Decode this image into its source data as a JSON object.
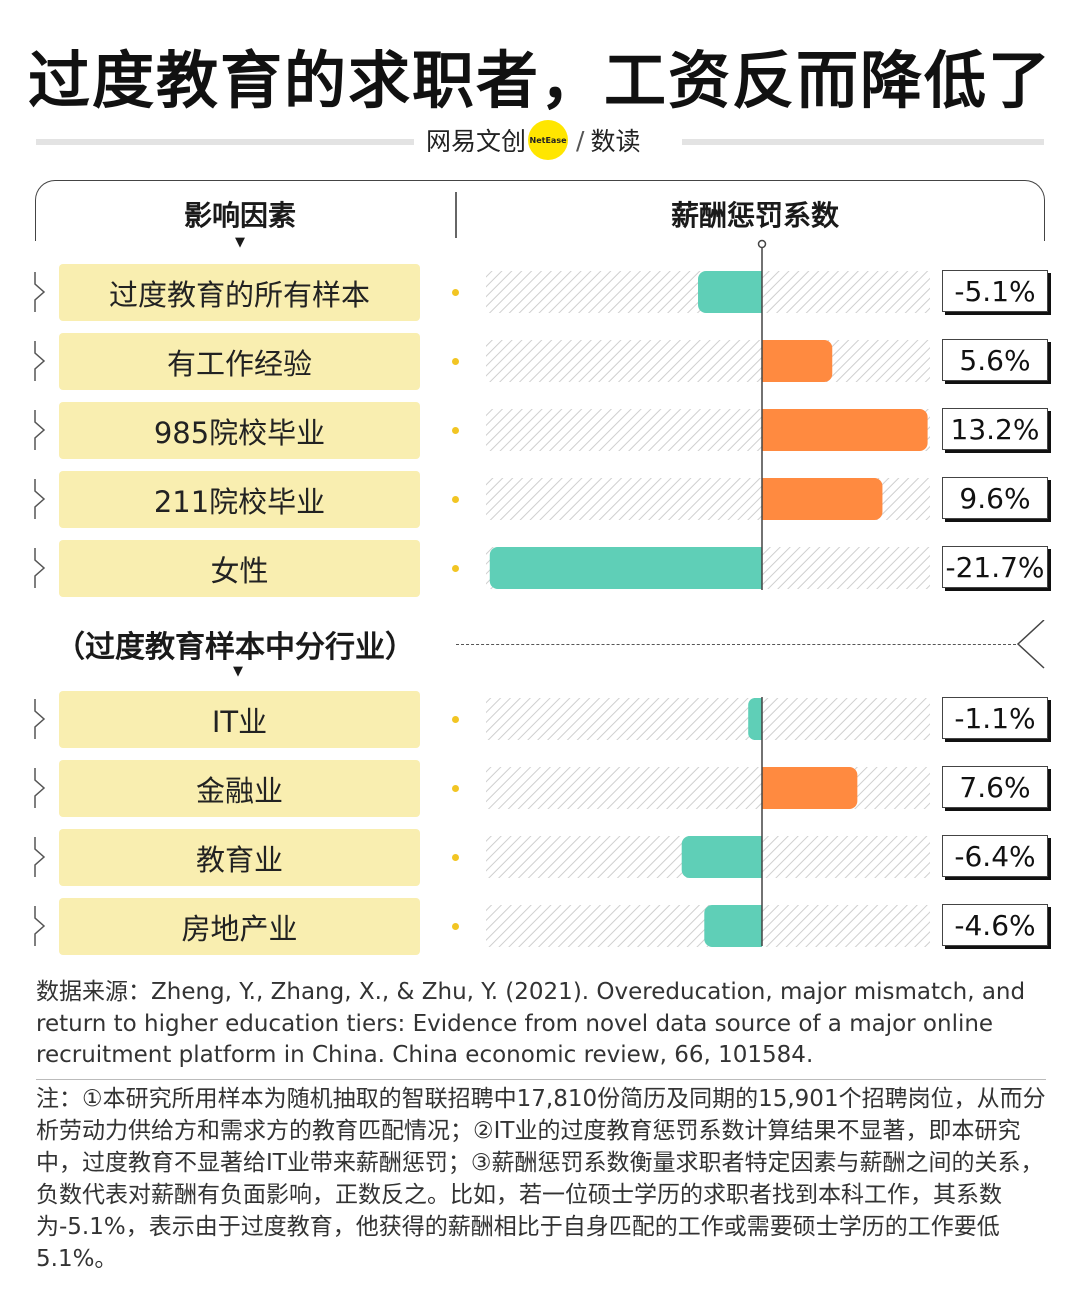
{
  "title": "过度教育的求职者，工资反而降低了",
  "brand": {
    "name": "网易文创",
    "logo_text": "NetEase",
    "slash": "/",
    "sub": "数读"
  },
  "headers": {
    "factor": "影响因素",
    "coefficient": "薪酬惩罚系数",
    "arrow": "▼"
  },
  "section2_title": "（过度教育样本中分行业）",
  "colors": {
    "negative": "#5fcfb7",
    "positive": "#ff8a40",
    "label_bg": "#f9eeb0",
    "dot": "#f2c523"
  },
  "chart_data": {
    "type": "bar",
    "orientation": "horizontal",
    "title": "薪酬惩罚系数",
    "unit": "%",
    "xlim": [
      -22,
      22
    ],
    "categories": [
      "过度教育的所有样本",
      "有工作经验",
      "985院校毕业",
      "211院校毕业",
      "女性",
      "IT业",
      "金融业",
      "教育业",
      "房地产业"
    ],
    "values": [
      -5.1,
      5.6,
      13.2,
      9.6,
      -21.7,
      -1.1,
      7.6,
      -6.4,
      -4.6
    ],
    "value_labels": [
      "-5.1%",
      "5.6%",
      "13.2%",
      "9.6%",
      "-21.7%",
      "-1.1%",
      "7.6%",
      "-6.4%",
      "-4.6%"
    ]
  },
  "footer": {
    "source": "数据来源：Zheng, Y., Zhang, X., & Zhu, Y. (2021). Overeducation, major mismatch, and return to higher education tiers: Evidence from novel data source of a major online recruitment platform in China. China economic review, 66, 101584.",
    "note": "注：①本研究所用样本为随机抽取的智联招聘中17,810份简历及同期的15,901个招聘岗位，从而分析劳动力供给方和需求方的教育匹配情况；②IT业的过度教育惩罚系数计算结果不显著，即本研究中，过度教育不显著给IT业带来薪酬惩罚；③薪酬惩罚系数衡量求职者特定因素与薪酬之间的关系，负数代表对薪酬有负面影响，正数反之。比如，若一位硕士学历的求职者找到本科工作，其系数为-5.1%，表示由于过度教育，他获得的薪酬相比于自身匹配的工作或需要硕士学历的工作要低5.1%。"
  }
}
